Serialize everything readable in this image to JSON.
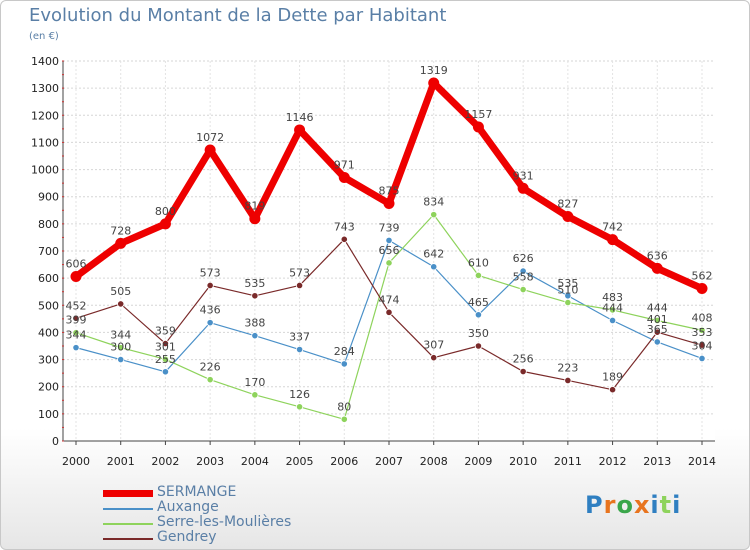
{
  "title": "Evolution du Montant de la Dette par Habitant",
  "subtitle": "(en €)",
  "chart_data": {
    "type": "line",
    "title": "Evolution du Montant de la Dette par Habitant",
    "ylabel": "(en €)",
    "ylim": [
      0,
      1400
    ],
    "yticks": [
      0,
      100,
      200,
      300,
      400,
      500,
      600,
      700,
      800,
      900,
      1000,
      1100,
      1200,
      1300,
      1400
    ],
    "categories": [
      "2000",
      "2001",
      "2002",
      "2003",
      "2004",
      "2005",
      "2006",
      "2007",
      "2008",
      "2009",
      "2010",
      "2011",
      "2012",
      "2013",
      "2014"
    ],
    "grid": true,
    "legend_position": "bottom-left",
    "series": [
      {
        "name": "SERMANGE",
        "color": "#ee0000",
        "values": [
          606,
          728,
          800,
          1072,
          819,
          1146,
          971,
          875,
          1319,
          1157,
          931,
          827,
          742,
          636,
          562
        ]
      },
      {
        "name": "Auxange",
        "color": "#4a90c8",
        "values": [
          344,
          300,
          255,
          436,
          388,
          337,
          284,
          739,
          642,
          465,
          626,
          535,
          444,
          365,
          304
        ]
      },
      {
        "name": "Serre-les-Moulières",
        "color": "#8ed35c",
        "values": [
          399,
          344,
          301,
          226,
          170,
          126,
          80,
          656,
          834,
          610,
          558,
          510,
          483,
          444,
          408
        ]
      },
      {
        "name": "Gendrey",
        "color": "#7a2a2a",
        "values": [
          452,
          505,
          359,
          573,
          535,
          573,
          743,
          474,
          307,
          350,
          256,
          223,
          189,
          401,
          353
        ]
      }
    ]
  },
  "logo": {
    "text": "Proxiti",
    "colors": [
      "#2f7fc1",
      "#e8741e",
      "#3aa64a",
      "#e8741e",
      "#2f7fc1",
      "#8ed35c",
      "#2f7fc1"
    ]
  }
}
